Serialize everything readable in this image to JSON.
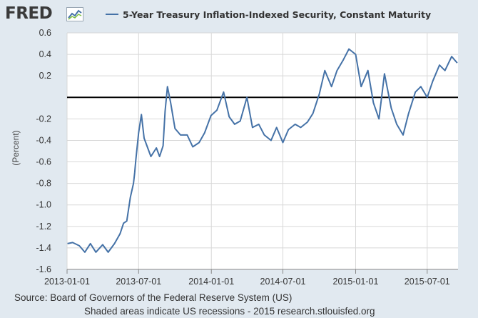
{
  "brand": {
    "logo_text": "FRED",
    "logo_icon": "line-graph-icon"
  },
  "chart_data": {
    "type": "line",
    "title": "5-Year Treasury Inflation-Indexed Security, Constant Maturity",
    "ylabel": "(Percent)",
    "xlabel": "",
    "ylim": [
      -1.6,
      0.6
    ],
    "xlim": [
      "2013-01-01",
      "2015-09-17"
    ],
    "grid": true,
    "legend_position": "top",
    "reference_line": 0,
    "y_ticks": [
      "0.6",
      "0.4",
      "0.2",
      "",
      "-0.2",
      "-0.4",
      "-0.6",
      "-0.8",
      "-1.0",
      "-1.2",
      "-1.4",
      "-1.6"
    ],
    "y_tick_values": [
      0.6,
      0.4,
      0.2,
      0.0,
      -0.2,
      -0.4,
      -0.6,
      -0.8,
      -1.0,
      -1.2,
      -1.4,
      -1.6
    ],
    "x_ticks": [
      "2013-01-01",
      "2013-07-01",
      "2014-01-01",
      "2014-07-01",
      "2015-01-01",
      "2015-07-01"
    ],
    "series": [
      {
        "color": "#4572a7",
        "x": [
          "2013-01-02",
          "2013-01-15",
          "2013-02-01",
          "2013-02-15",
          "2013-03-01",
          "2013-03-15",
          "2013-04-01",
          "2013-04-15",
          "2013-05-01",
          "2013-05-15",
          "2013-05-24",
          "2013-06-01",
          "2013-06-10",
          "2013-06-18",
          "2013-06-21",
          "2013-06-24",
          "2013-07-01",
          "2013-07-08",
          "2013-07-15",
          "2013-08-01",
          "2013-08-15",
          "2013-08-23",
          "2013-09-01",
          "2013-09-06",
          "2013-09-12",
          "2013-09-20",
          "2013-10-01",
          "2013-10-15",
          "2013-11-01",
          "2013-11-15",
          "2013-12-01",
          "2013-12-15",
          "2013-12-31",
          "2014-01-15",
          "2014-02-01",
          "2014-02-15",
          "2014-03-01",
          "2014-03-15",
          "2014-04-01",
          "2014-04-15",
          "2014-05-01",
          "2014-05-15",
          "2014-06-01",
          "2014-06-15",
          "2014-07-01",
          "2014-07-15",
          "2014-08-01",
          "2014-08-15",
          "2014-09-01",
          "2014-09-15",
          "2014-10-01",
          "2014-10-15",
          "2014-11-01",
          "2014-11-15",
          "2014-12-01",
          "2014-12-15",
          "2015-01-01",
          "2015-01-15",
          "2015-02-01",
          "2015-02-15",
          "2015-03-01",
          "2015-03-15",
          "2015-04-01",
          "2015-04-15",
          "2015-05-01",
          "2015-05-15",
          "2015-06-01",
          "2015-06-15",
          "2015-07-01",
          "2015-07-15",
          "2015-08-01",
          "2015-08-15",
          "2015-09-01",
          "2015-09-15"
        ],
        "values": [
          -1.36,
          -1.35,
          -1.38,
          -1.44,
          -1.36,
          -1.44,
          -1.37,
          -1.44,
          -1.36,
          -1.27,
          -1.17,
          -1.15,
          -0.93,
          -0.8,
          -0.7,
          -0.58,
          -0.33,
          -0.16,
          -0.38,
          -0.55,
          -0.47,
          -0.55,
          -0.45,
          -0.13,
          0.1,
          -0.05,
          -0.29,
          -0.35,
          -0.35,
          -0.46,
          -0.42,
          -0.33,
          -0.17,
          -0.12,
          0.05,
          -0.18,
          -0.25,
          -0.22,
          0.0,
          -0.28,
          -0.25,
          -0.35,
          -0.4,
          -0.28,
          -0.42,
          -0.3,
          -0.25,
          -0.28,
          -0.23,
          -0.15,
          0.03,
          0.25,
          0.1,
          0.25,
          0.35,
          0.45,
          0.4,
          0.1,
          0.25,
          -0.05,
          -0.2,
          0.22,
          -0.1,
          -0.25,
          -0.35,
          -0.15,
          0.05,
          0.1,
          0.0,
          0.15,
          0.3,
          0.25,
          0.38,
          0.32
        ]
      }
    ]
  },
  "footer": {
    "source": "Source: Board of Governors of the Federal Reserve System (US)",
    "note": "Shaded areas indicate US recessions - 2015 research.stlouisfed.org"
  }
}
